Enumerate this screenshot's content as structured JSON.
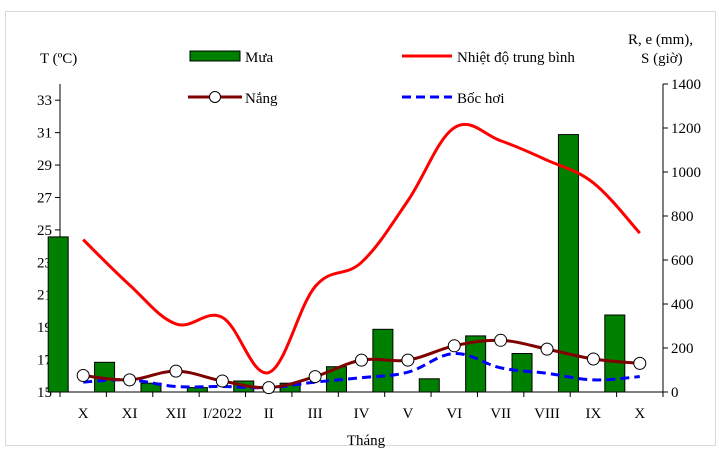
{
  "chart_data": {
    "type": "bar+line",
    "categories": [
      "X",
      "XI",
      "XII",
      "I/2022",
      "II",
      "III",
      "IV",
      "V",
      "VI",
      "VII",
      "VIII",
      "IX",
      "X"
    ],
    "xlabel": "Tháng",
    "ylabel_left": "T (ºC)",
    "ylabel_right_1": "R, e (mm),",
    "ylabel_right_2": "S (giờ)",
    "ylim_left": [
      15,
      34
    ],
    "ylim_right": [
      0,
      1400
    ],
    "yticks_left": [
      15,
      17,
      19,
      21,
      23,
      25,
      27,
      29,
      31,
      33
    ],
    "yticks_right": [
      0,
      200,
      400,
      600,
      800,
      1000,
      1200,
      1400
    ],
    "grid": false,
    "legend_position": "top",
    "series": [
      {
        "name": "Mưa",
        "kind": "bar",
        "axis": "right",
        "color": "#008000",
        "values": [
          705,
          135,
          40,
          20,
          50,
          40,
          115,
          285,
          60,
          255,
          175,
          1170,
          350
        ]
      },
      {
        "name": "Nhiệt độ trung bình",
        "kind": "line",
        "axis": "left",
        "color": "#ff0000",
        "values": [
          24.4,
          21.6,
          19.2,
          19.6,
          16.2,
          21.5,
          23.0,
          26.8,
          31.3,
          30.5,
          29.3,
          27.9,
          24.8
        ]
      },
      {
        "name": "Nắng",
        "kind": "line-markers",
        "axis": "right",
        "color": "#800000",
        "values": [
          75,
          55,
          95,
          50,
          20,
          70,
          145,
          145,
          210,
          235,
          195,
          150,
          130
        ]
      },
      {
        "name": "Bốc hơi",
        "kind": "dashed-line",
        "axis": "right",
        "color": "#0000ff",
        "values": [
          45,
          55,
          25,
          25,
          20,
          45,
          65,
          90,
          175,
          110,
          85,
          55,
          70
        ]
      }
    ]
  }
}
